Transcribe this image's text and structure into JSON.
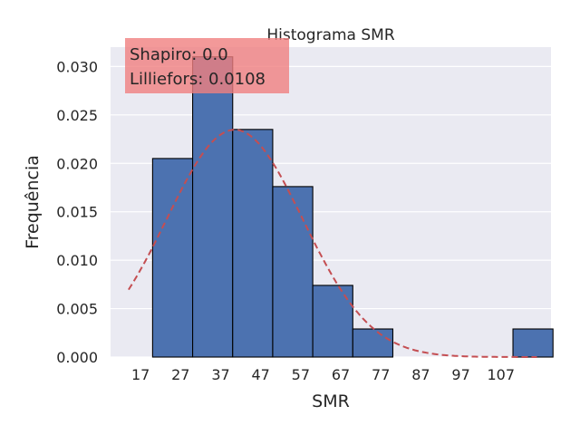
{
  "chart_data": {
    "type": "bar",
    "title": "Histograma SMR",
    "xlabel": "SMR",
    "ylabel": "Frequência",
    "xlim": [
      9.5,
      119.5
    ],
    "ylim": [
      0,
      0.032
    ],
    "xticks": [
      17,
      27,
      37,
      47,
      57,
      67,
      77,
      87,
      97,
      107
    ],
    "yticks": [
      0.0,
      0.005,
      0.01,
      0.015,
      0.02,
      0.025,
      0.03
    ],
    "ytick_labels": [
      "0.000",
      "0.005",
      "0.010",
      "0.015",
      "0.020",
      "0.025",
      "0.030"
    ],
    "grid": true,
    "bin_edges": [
      20,
      30,
      40,
      50,
      60,
      70,
      80,
      90,
      100,
      110,
      120
    ],
    "values": [
      0.0205,
      0.031,
      0.0235,
      0.0176,
      0.0074,
      0.0029,
      0.0,
      0.0,
      0.0,
      0.0029
    ],
    "bar_color": "#4c72b0",
    "normal_fit": {
      "mean": 40.5,
      "std": 17.0,
      "x_range": [
        14,
        116
      ],
      "color": "#c44e52",
      "style": "dashed"
    },
    "annotation": {
      "lines": [
        "Shapiro: 0.0",
        "Lilliefors: 0.0108"
      ],
      "background": "#f08080"
    },
    "background": "#eaeaf2"
  }
}
